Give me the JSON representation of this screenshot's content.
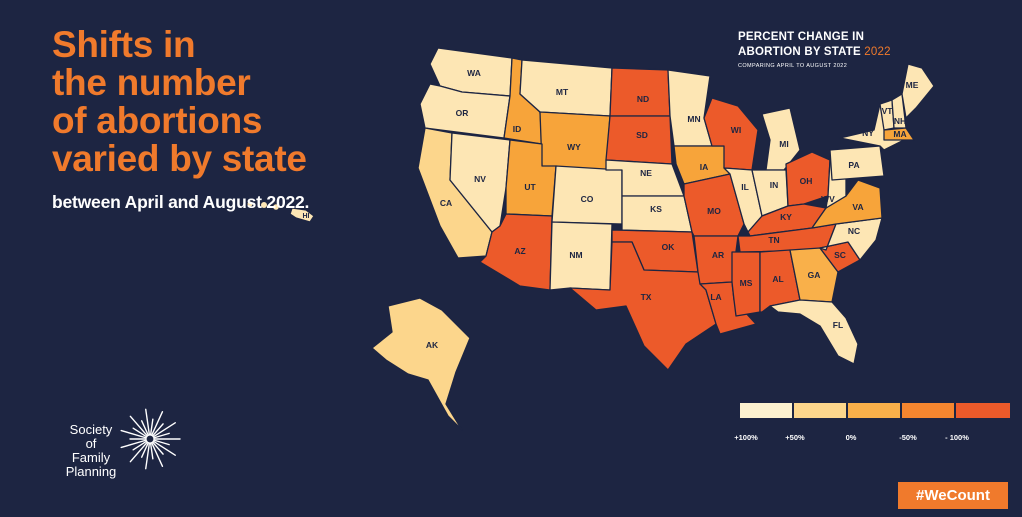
{
  "headline": {
    "title": "Shifts in\nthe number\nof abortions\nvaried by state",
    "subtitle": "between April and August 2022."
  },
  "legend": {
    "title_line1": "PERCENT CHANGE IN",
    "title_line2": "ABORTION BY STATE",
    "title_year": "2022",
    "comparison": "COMPARING APRIL TO AUGUST 2022",
    "swatches": [
      "#fdf1cf",
      "#fcd68c",
      "#f9b04a",
      "#f5862f",
      "#ec5a2a"
    ],
    "tick_labels": [
      "+100%",
      "+50%",
      "0%",
      "-50%",
      "- 100%"
    ]
  },
  "colors": {
    "background": "#1d2542",
    "accent": "#f07a2c",
    "state_border": "#1d2542"
  },
  "states": [
    {
      "abbr": "WA",
      "color": "#fde6b4"
    },
    {
      "abbr": "OR",
      "color": "#fde6b4"
    },
    {
      "abbr": "CA",
      "color": "#fcd68c"
    },
    {
      "abbr": "NV",
      "color": "#fde6b4"
    },
    {
      "abbr": "ID",
      "color": "#f7a43a"
    },
    {
      "abbr": "MT",
      "color": "#fde6b4"
    },
    {
      "abbr": "WY",
      "color": "#f7a43a"
    },
    {
      "abbr": "UT",
      "color": "#f7a43a"
    },
    {
      "abbr": "AZ",
      "color": "#ec5a2a"
    },
    {
      "abbr": "CO",
      "color": "#fde6b4"
    },
    {
      "abbr": "NM",
      "color": "#fde6b4"
    },
    {
      "abbr": "ND",
      "color": "#ec5a2a"
    },
    {
      "abbr": "SD",
      "color": "#ec5a2a"
    },
    {
      "abbr": "NE",
      "color": "#fde6b4"
    },
    {
      "abbr": "KS",
      "color": "#fde6b4"
    },
    {
      "abbr": "OK",
      "color": "#ec5a2a"
    },
    {
      "abbr": "TX",
      "color": "#ec5a2a"
    },
    {
      "abbr": "MN",
      "color": "#fde6b4"
    },
    {
      "abbr": "IA",
      "color": "#f7a43a"
    },
    {
      "abbr": "MO",
      "color": "#ec5a2a"
    },
    {
      "abbr": "AR",
      "color": "#ec5a2a"
    },
    {
      "abbr": "LA",
      "color": "#ec5a2a"
    },
    {
      "abbr": "WI",
      "color": "#ec5a2a"
    },
    {
      "abbr": "IL",
      "color": "#fde6b4"
    },
    {
      "abbr": "MI",
      "color": "#fde6b4"
    },
    {
      "abbr": "IN",
      "color": "#fde6b4"
    },
    {
      "abbr": "OH",
      "color": "#ec5a2a"
    },
    {
      "abbr": "KY",
      "color": "#ec5a2a"
    },
    {
      "abbr": "TN",
      "color": "#ec5a2a"
    },
    {
      "abbr": "MS",
      "color": "#ec5a2a"
    },
    {
      "abbr": "AL",
      "color": "#ec5a2a"
    },
    {
      "abbr": "GA",
      "color": "#f9b04a"
    },
    {
      "abbr": "FL",
      "color": "#fde6b4"
    },
    {
      "abbr": "SC",
      "color": "#ec5a2a"
    },
    {
      "abbr": "NC",
      "color": "#fde6b4"
    },
    {
      "abbr": "VA",
      "color": "#f7a43a"
    },
    {
      "abbr": "WV",
      "color": "#fde6b4"
    },
    {
      "abbr": "PA",
      "color": "#fde6b4"
    },
    {
      "abbr": "NY",
      "color": "#fde6b4"
    },
    {
      "abbr": "VT",
      "color": "#fde6b4"
    },
    {
      "abbr": "NH",
      "color": "#fde6b4"
    },
    {
      "abbr": "ME",
      "color": "#fde6b4"
    },
    {
      "abbr": "MA",
      "color": "#f7a43a"
    },
    {
      "abbr": "AK",
      "color": "#fcd68c"
    },
    {
      "abbr": "HI",
      "color": "#fde6b4"
    }
  ],
  "logo": {
    "line1": "Society",
    "line2": "of",
    "line3": "Family",
    "line4": "Planning"
  },
  "hashtag": "#WeCount"
}
